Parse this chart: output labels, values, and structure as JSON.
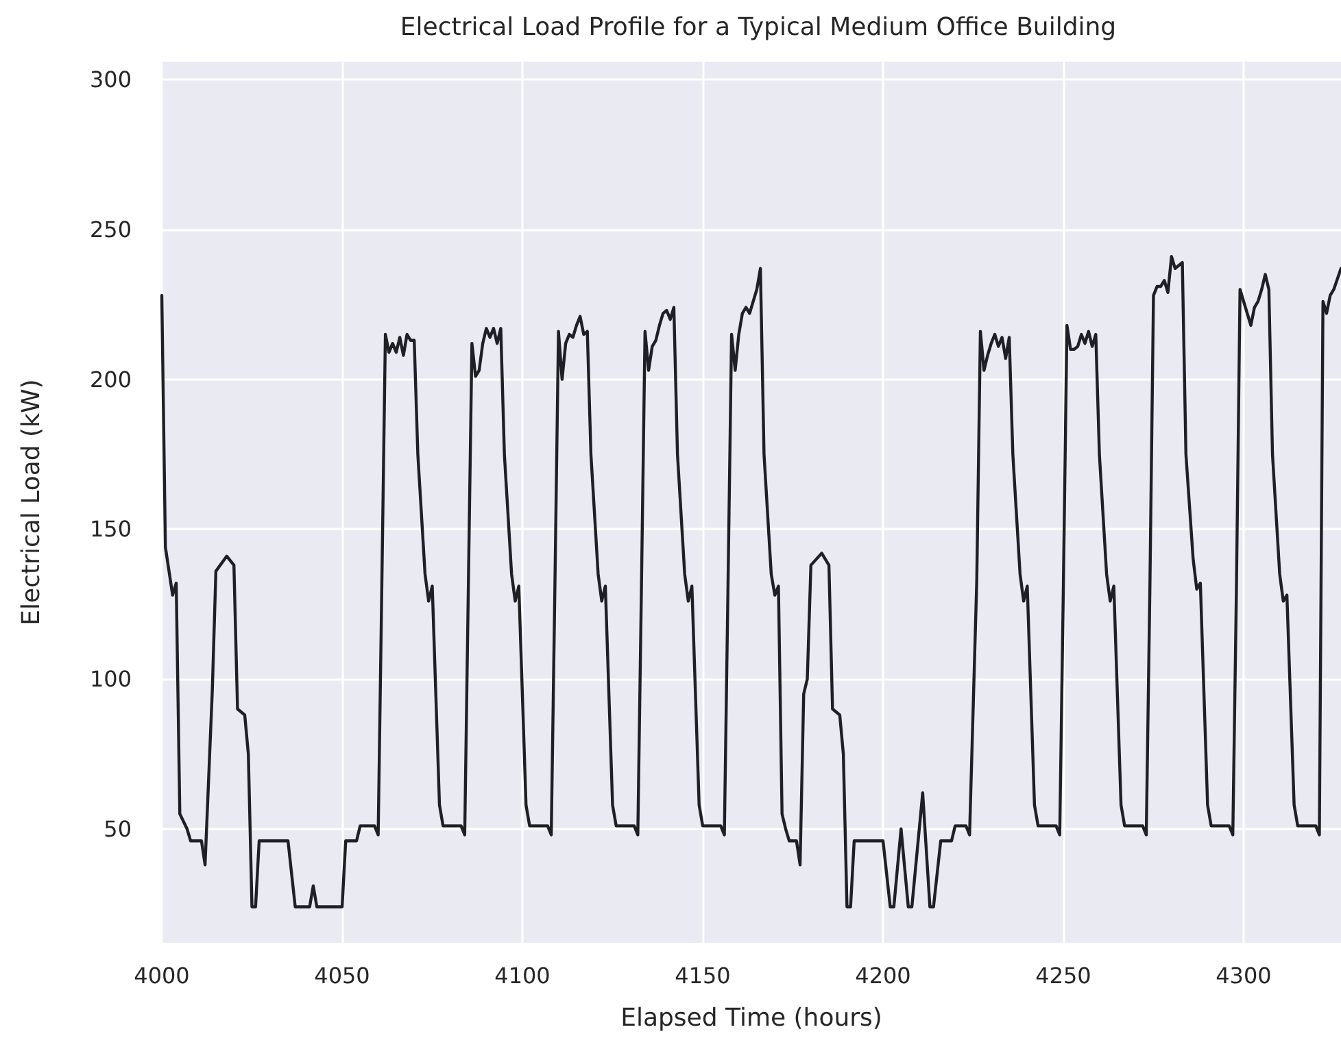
{
  "chart_data": {
    "type": "line",
    "title": "Electrical Load Profile for a Typical Medium Office Building",
    "xlabel": "Elapsed Time (hours)",
    "ylabel": "Electrical Load (kW)",
    "x": [
      4000,
      4001,
      4003,
      4004,
      4005,
      4007,
      4008,
      4011,
      4012,
      4014,
      4015,
      4018,
      4020,
      4021,
      4023,
      4024,
      4025,
      4026,
      4027,
      4035,
      4037,
      4041,
      4042,
      4043,
      4050,
      4051,
      4054,
      4055,
      4058,
      4059,
      4060,
      4061,
      4062,
      4063,
      4064,
      4065,
      4066,
      4067,
      4068,
      4069,
      4070,
      4071,
      4073,
      4074,
      4075,
      4077,
      4078,
      4083,
      4084,
      4085,
      4086,
      4087,
      4088,
      4089,
      4090,
      4091,
      4092,
      4093,
      4094,
      4095,
      4097,
      4098,
      4099,
      4101,
      4102,
      4107,
      4108,
      4109,
      4110,
      4111,
      4112,
      4113,
      4114,
      4115,
      4116,
      4117,
      4118,
      4119,
      4121,
      4122,
      4123,
      4125,
      4126,
      4131,
      4132,
      4133,
      4134,
      4135,
      4136,
      4137,
      4138,
      4139,
      4140,
      4141,
      4142,
      4143,
      4145,
      4146,
      4147,
      4149,
      4150,
      4155,
      4156,
      4157,
      4158,
      4159,
      4160,
      4161,
      4162,
      4163,
      4164,
      4165,
      4166,
      4167,
      4169,
      4170,
      4171,
      4172,
      4173,
      4174,
      4176,
      4177,
      4178,
      4179,
      4180,
      4183,
      4185,
      4186,
      4188,
      4189,
      4190,
      4191,
      4192,
      4200,
      4202,
      4203,
      4205,
      4207,
      4208,
      4211,
      4213,
      4214,
      4216,
      4219,
      4220,
      4223,
      4224,
      4226,
      4227,
      4228,
      4229,
      4230,
      4231,
      4232,
      4233,
      4234,
      4235,
      4236,
      4238,
      4239,
      4240,
      4242,
      4243,
      4248,
      4249,
      4250,
      4251,
      4252,
      4253,
      4254,
      4255,
      4256,
      4257,
      4258,
      4259,
      4260,
      4262,
      4263,
      4264,
      4266,
      4267,
      4272,
      4273,
      4274,
      4275,
      4276,
      4277,
      4278,
      4279,
      4280,
      4281,
      4282,
      4283,
      4284,
      4286,
      4287,
      4288,
      4290,
      4291,
      4296,
      4297,
      4298,
      4299,
      4300,
      4301,
      4302,
      4303,
      4304,
      4305,
      4306,
      4307,
      4308,
      4310,
      4311,
      4312,
      4314,
      4315,
      4320,
      4321,
      4322,
      4323,
      4324,
      4325,
      4327
    ],
    "series": [
      {
        "color": "#1f1f26",
        "values": [
          228,
          144,
          128,
          132,
          55,
          50,
          46,
          46,
          38,
          96,
          136,
          141,
          138,
          90,
          88,
          75,
          24,
          24,
          46,
          46,
          24,
          24,
          31,
          24,
          24,
          46,
          46,
          51,
          51,
          51,
          48,
          130,
          215,
          209,
          212,
          209,
          214,
          208,
          215,
          213,
          213,
          175,
          135,
          126,
          131,
          58,
          51,
          51,
          48,
          130,
          212,
          201,
          203,
          212,
          217,
          214,
          217,
          212,
          217,
          175,
          135,
          126,
          131,
          58,
          51,
          51,
          48,
          130,
          216,
          200,
          212,
          215,
          214,
          218,
          221,
          215,
          216,
          175,
          135,
          126,
          131,
          58,
          51,
          51,
          48,
          130,
          216,
          203,
          211,
          213,
          218,
          222,
          223,
          220,
          224,
          175,
          135,
          126,
          131,
          58,
          51,
          51,
          48,
          130,
          215,
          203,
          215,
          222,
          224,
          222,
          226,
          230,
          237,
          175,
          135,
          128,
          131,
          55,
          50,
          46,
          46,
          38,
          95,
          100,
          138,
          142,
          138,
          90,
          88,
          75,
          24,
          24,
          46,
          46,
          24,
          24,
          50,
          24,
          24,
          62,
          24,
          24,
          46,
          46,
          51,
          51,
          48,
          133,
          216,
          203,
          208,
          212,
          215,
          211,
          214,
          207,
          214,
          175,
          135,
          126,
          131,
          58,
          51,
          51,
          48,
          130,
          218,
          210,
          210,
          211,
          215,
          212,
          216,
          211,
          215,
          175,
          135,
          126,
          131,
          58,
          51,
          51,
          48,
          130,
          228,
          231,
          231,
          233,
          229,
          241,
          237,
          238,
          239,
          175,
          140,
          130,
          132,
          58,
          51,
          51,
          48,
          130,
          230,
          226,
          222,
          218,
          224,
          226,
          230,
          235,
          230,
          175,
          135,
          126,
          128,
          58,
          51,
          51,
          48,
          226,
          222,
          228,
          230,
          237
        ]
      }
    ],
    "xlim": [
      4000,
      4327
    ],
    "xticks": [
      4000,
      4050,
      4100,
      4150,
      4200,
      4250,
      4300
    ],
    "ylim": [
      12,
      306
    ],
    "yticks": [
      50,
      100,
      150,
      200,
      250,
      300
    ],
    "grid": true,
    "marker": "none",
    "line_style": "solid"
  }
}
